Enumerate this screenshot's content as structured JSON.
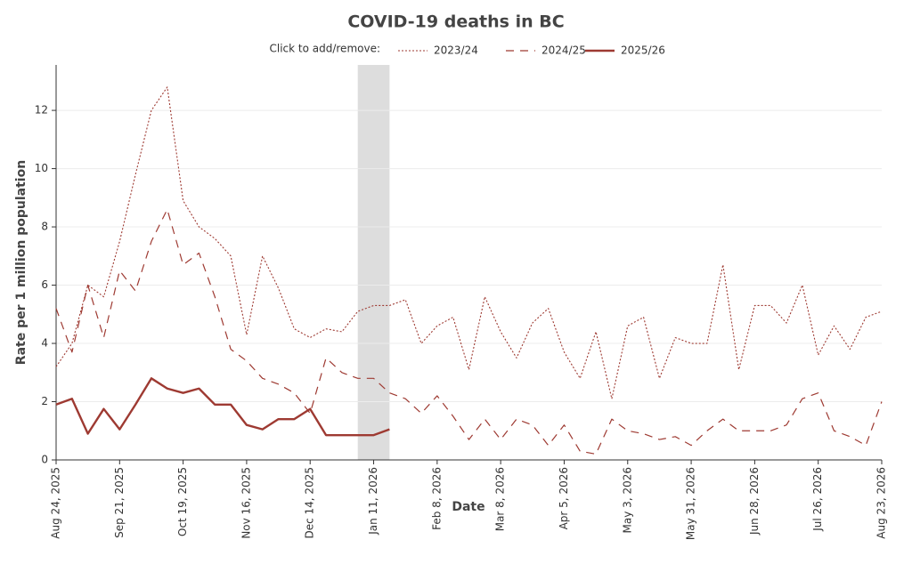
{
  "chart_data": {
    "type": "line",
    "title": "COVID-19 deaths in BC",
    "legend_prompt": "Click to add/remove:",
    "x_label": "Date",
    "y_label": "Rate per 1 million population",
    "x": [
      "2025-08-24",
      "2025-08-31",
      "2025-09-07",
      "2025-09-14",
      "2025-09-21",
      "2025-09-28",
      "2025-10-05",
      "2025-10-12",
      "2025-10-19",
      "2025-10-26",
      "2025-11-02",
      "2025-11-09",
      "2025-11-16",
      "2025-11-23",
      "2025-11-30",
      "2025-12-07",
      "2025-12-14",
      "2025-12-21",
      "2025-12-28",
      "2026-01-04",
      "2026-01-11",
      "2026-01-18",
      "2026-01-25",
      "2026-02-01",
      "2026-02-08",
      "2026-02-15",
      "2026-02-22",
      "2026-03-01",
      "2026-03-08",
      "2026-03-15",
      "2026-03-22",
      "2026-03-29",
      "2026-04-05",
      "2026-04-12",
      "2026-04-19",
      "2026-04-26",
      "2026-05-03",
      "2026-05-10",
      "2026-05-17",
      "2026-05-24",
      "2026-05-31",
      "2026-06-07",
      "2026-06-14",
      "2026-06-21",
      "2026-06-28",
      "2026-07-05",
      "2026-07-12",
      "2026-07-19",
      "2026-07-26",
      "2026-08-02",
      "2026-08-09",
      "2026-08-16",
      "2026-08-23"
    ],
    "series": [
      {
        "name": "2023/24",
        "color": "#9e3a32",
        "dash": "dotted",
        "values": [
          3.2,
          4.0,
          6.0,
          5.6,
          7.5,
          9.8,
          12.0,
          12.8,
          8.9,
          8.0,
          7.6,
          7.0,
          4.3,
          7.0,
          5.9,
          4.5,
          4.2,
          4.5,
          4.4,
          5.1,
          5.3,
          5.3,
          5.5,
          4.0,
          4.6,
          4.9,
          3.1,
          5.6,
          4.4,
          3.5,
          4.7,
          5.2,
          3.7,
          2.8,
          4.4,
          2.1,
          4.6,
          4.9,
          2.8,
          4.2,
          4.0,
          4.0,
          6.7,
          3.1,
          5.3,
          5.3,
          4.7,
          6.0,
          3.6,
          4.6,
          3.8,
          4.9,
          5.1
        ]
      },
      {
        "name": "2024/25",
        "color": "#9e3a32",
        "dash": "dashed",
        "values": [
          5.2,
          3.7,
          6.0,
          4.2,
          6.5,
          5.8,
          7.5,
          8.6,
          6.7,
          7.1,
          5.6,
          3.8,
          3.4,
          2.8,
          2.6,
          2.3,
          1.6,
          3.5,
          3.0,
          2.8,
          2.8,
          2.3,
          2.1,
          1.6,
          2.2,
          1.5,
          0.7,
          1.4,
          0.7,
          1.4,
          1.2,
          0.5,
          1.2,
          0.3,
          0.2,
          1.4,
          1.0,
          0.9,
          0.7,
          0.8,
          0.5,
          1.0,
          1.4,
          1.0,
          1.0,
          1.0,
          1.2,
          2.1,
          2.3,
          1.0,
          0.8,
          0.5,
          2.0
        ]
      },
      {
        "name": "2025/26",
        "color": "#9e3a32",
        "dash": "solid",
        "values": [
          1.9,
          2.1,
          0.9,
          1.75,
          1.05,
          1.9,
          2.8,
          2.45,
          2.3,
          2.45,
          1.9,
          1.9,
          1.2,
          1.05,
          1.4,
          1.4,
          1.75,
          0.85,
          0.85,
          0.85,
          0.85,
          1.05,
          null,
          null,
          null,
          null,
          null,
          null,
          null,
          null,
          null,
          null,
          null,
          null,
          null,
          null,
          null,
          null,
          null,
          null,
          null,
          null,
          null,
          null,
          null,
          null,
          null,
          null,
          null,
          null,
          null,
          null,
          null
        ]
      }
    ],
    "xlim": [
      "2025-08-24",
      "2026-08-23"
    ],
    "xticks": [
      {
        "value": "2025-08-24",
        "label": "Aug 24, 2025"
      },
      {
        "value": "2025-09-21",
        "label": "Sep 21, 2025"
      },
      {
        "value": "2025-10-19",
        "label": "Oct 19, 2025"
      },
      {
        "value": "2025-11-16",
        "label": "Nov 16, 2025"
      },
      {
        "value": "2025-12-14",
        "label": "Dec 14, 2025"
      },
      {
        "value": "2026-01-11",
        "label": "Jan 11, 2026"
      },
      {
        "value": "2026-02-08",
        "label": "Feb 8, 2026"
      },
      {
        "value": "2026-03-08",
        "label": "Mar 8, 2026"
      },
      {
        "value": "2026-04-05",
        "label": "Apr 5, 2026"
      },
      {
        "value": "2026-05-03",
        "label": "May 3, 2026"
      },
      {
        "value": "2026-05-31",
        "label": "May 31, 2026"
      },
      {
        "value": "2026-06-28",
        "label": "Jun 28, 2026"
      },
      {
        "value": "2026-07-26",
        "label": "Jul 26, 2026"
      },
      {
        "value": "2026-08-23",
        "label": "Aug 23, 2026"
      }
    ],
    "ylim": [
      0,
      13.56
    ],
    "yticks": [
      0,
      2,
      4,
      6,
      8,
      10,
      12
    ],
    "grid": true,
    "shaded_region": [
      "2026-01-04",
      "2026-01-18"
    ],
    "shade_color": "#dddddd"
  }
}
